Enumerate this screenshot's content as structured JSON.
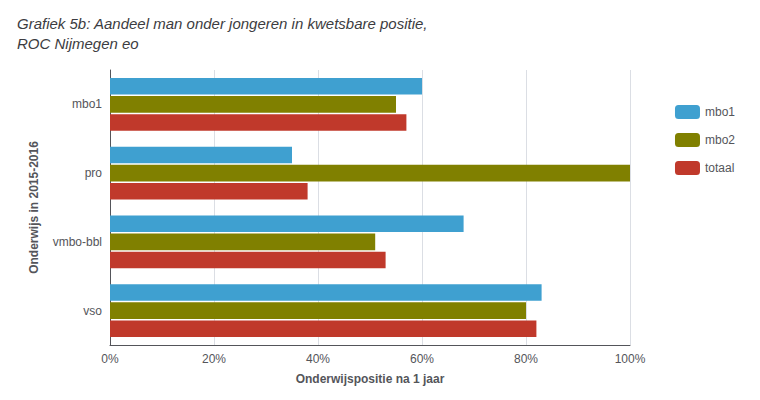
{
  "chart_data": {
    "type": "bar",
    "orientation": "horizontal",
    "title": "Grafiek 5b: Aandeel man onder jongeren in kwetsbare positie,\nROC Nijmegen eo",
    "x_label": "Onderwijspositie na 1 jaar",
    "y_label": "Onderwijs in 2015-2016",
    "categories": [
      "mbo1",
      "pro",
      "vmbo-bbl",
      "vso"
    ],
    "series": [
      {
        "name": "mbo1",
        "color": "#3FA0D0",
        "values": [
          0.6,
          0.35,
          0.68,
          0.83
        ]
      },
      {
        "name": "mbo2",
        "color": "#808000",
        "values": [
          0.55,
          1.0,
          0.51,
          0.8
        ]
      },
      {
        "name": "totaal",
        "color": "#C0392B",
        "values": [
          0.57,
          0.38,
          0.53,
          0.82
        ]
      }
    ],
    "xlim": [
      0,
      1.0
    ],
    "xticks": [
      {
        "value": 0,
        "label": "0%"
      },
      {
        "value": 0.2,
        "label": "20%"
      },
      {
        "value": 0.4,
        "label": "40%"
      },
      {
        "value": 0.6,
        "label": "60%"
      },
      {
        "value": 0.8,
        "label": "80%"
      },
      {
        "value": 1.0,
        "label": "100%"
      }
    ],
    "grid": true,
    "legend": "right"
  }
}
